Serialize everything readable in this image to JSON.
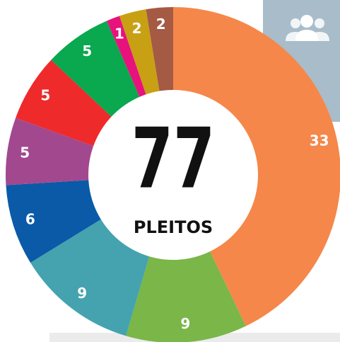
{
  "chart_data": {
    "type": "donut",
    "values": [
      33,
      9,
      9,
      6,
      5,
      5,
      5,
      1,
      2,
      2
    ],
    "colors": [
      "#f5874a",
      "#7ab648",
      "#44a3ae",
      "#0a5aa8",
      "#a2488f",
      "#ee2a2b",
      "#0aa84f",
      "#e8127c",
      "#c8a013",
      "#a55a43"
    ],
    "total": 77,
    "center_label": "PLEITOS"
  }
}
